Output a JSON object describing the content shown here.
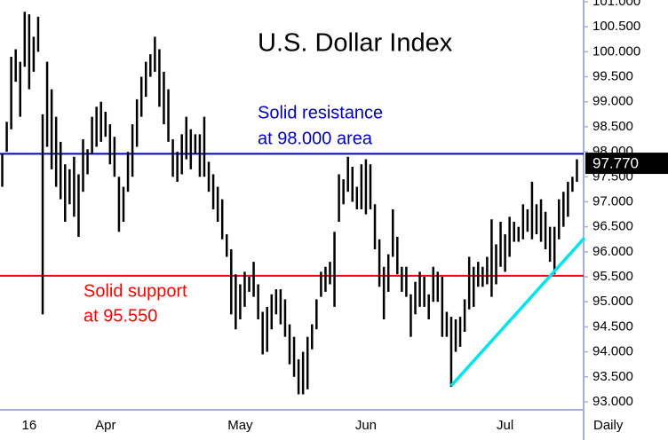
{
  "chart_data": {
    "type": "hilo",
    "title": "U.S. Dollar Index",
    "x_axis_label": "Daily",
    "color": "#000000",
    "categories": [
      null,
      null,
      null,
      null,
      null,
      null,
      "16",
      null,
      null,
      null,
      null,
      null,
      null,
      null,
      null,
      null,
      null,
      null,
      null,
      null,
      null,
      null,
      null,
      "Apr",
      null,
      null,
      null,
      null,
      null,
      null,
      null,
      null,
      null,
      null,
      null,
      null,
      null,
      null,
      null,
      null,
      null,
      null,
      null,
      null,
      null,
      null,
      null,
      null,
      null,
      null,
      null,
      null,
      null,
      "May",
      null,
      null,
      null,
      null,
      null,
      null,
      null,
      null,
      null,
      null,
      null,
      null,
      null,
      null,
      null,
      null,
      null,
      null,
      null,
      null,
      null,
      null,
      null,
      null,
      null,
      null,
      null,
      "Jun",
      null,
      null,
      null,
      null,
      null,
      null,
      null,
      null,
      null,
      null,
      null,
      null,
      null,
      null,
      null,
      null,
      null,
      null,
      null,
      null,
      null,
      null,
      null,
      null,
      null,
      null,
      null,
      null,
      null,
      null,
      "Jul",
      null,
      null,
      null,
      null,
      null,
      null,
      null,
      null,
      null,
      null,
      null,
      null,
      null,
      null,
      null,
      null
    ],
    "high": [
      97.95,
      98.6,
      99.9,
      100.05,
      99.8,
      100.8,
      100.75,
      100.3,
      100.7,
      98.75,
      99.8,
      99.25,
      98.7,
      98.2,
      97.75,
      97.65,
      97.9,
      97.55,
      98.25,
      98.05,
      98.7,
      98.9,
      99,
      98.8,
      98.55,
      98.3,
      97.5,
      97.3,
      98,
      98.55,
      99.05,
      99.5,
      99.8,
      99.95,
      100.3,
      100.05,
      99.6,
      99.25,
      98.25,
      98,
      98.35,
      98.7,
      98.45,
      98.35,
      98.35,
      98.7,
      97.8,
      97.55,
      97.3,
      97.05,
      96.35,
      96.05,
      95.55,
      95.35,
      95.6,
      95.5,
      95.8,
      95.35,
      94.8,
      94.9,
      95.15,
      95.25,
      95.25,
      95.05,
      94.55,
      94.3,
      93.85,
      94,
      94.3,
      94.55,
      95.05,
      95.6,
      95.7,
      95.8,
      96.4,
      97.55,
      97.45,
      97.9,
      97.7,
      97.3,
      97.75,
      97.85,
      97.75,
      96.95,
      96.25,
      95.7,
      95.95,
      96.85,
      96.3,
      95.7,
      95.7,
      95.15,
      95.4,
      95.6,
      95.5,
      95.15,
      95.7,
      95.6,
      95.5,
      94.8,
      94.7,
      94.65,
      94.7,
      95.05,
      95.9,
      95.7,
      95.8,
      95.7,
      95.9,
      96.65,
      96.15,
      96.6,
      96.35,
      96.7,
      96.6,
      96.5,
      96.95,
      96.85,
      97.4,
      96.95,
      97.05,
      96.8,
      96.5,
      96.5,
      97.05,
      97.2,
      97.4,
      97.5,
      97.85
    ],
    "low": [
      97.3,
      98,
      98.45,
      99.4,
      98.7,
      99.7,
      99.25,
      99.6,
      100,
      94.75,
      98.1,
      97.65,
      97.3,
      97.05,
      96.6,
      96.95,
      96.7,
      96.3,
      97.2,
      97.55,
      97.95,
      98.1,
      98.2,
      98.3,
      97.75,
      97.5,
      96.4,
      96.6,
      97.2,
      97.5,
      98.1,
      98.7,
      99.1,
      99.5,
      99.6,
      98.9,
      98.55,
      98.2,
      97.5,
      97.4,
      97.55,
      97.85,
      97.65,
      97.95,
      97.5,
      97.5,
      97.2,
      96.85,
      96.6,
      96.25,
      95.9,
      94.75,
      94.45,
      94.65,
      94.9,
      95.2,
      95.1,
      94.65,
      93.95,
      94,
      94.45,
      94.75,
      94.55,
      94.3,
      93.75,
      93.5,
      93.15,
      93.15,
      93.25,
      94.05,
      94.45,
      95.1,
      95.2,
      95.35,
      94.9,
      96.6,
      96.95,
      97.2,
      97,
      96.85,
      96.85,
      96.75,
      96.85,
      96.05,
      95.3,
      94.65,
      95.2,
      95.9,
      95.55,
      95.2,
      95.1,
      94.3,
      94.75,
      94.9,
      94.9,
      94.65,
      95,
      95,
      94.3,
      94.3,
      93.3,
      94,
      94.1,
      94.4,
      94.85,
      94.9,
      95.3,
      95.3,
      95.35,
      95.1,
      95.35,
      95.7,
      95.6,
      95.9,
      96.2,
      96.2,
      96.25,
      96.4,
      96.25,
      96.35,
      96.2,
      96.05,
      95.8,
      95.55,
      96.25,
      96.5,
      96.7,
      97.2,
      97.4
    ],
    "ylim": [
      92.84,
      101.035
    ],
    "yticks": [
      {
        "value": 93,
        "label": "93.000"
      },
      {
        "value": 93.5,
        "label": "93.500"
      },
      {
        "value": 94,
        "label": "94.000"
      },
      {
        "value": 94.5,
        "label": "94.500"
      },
      {
        "value": 95,
        "label": "95.000"
      },
      {
        "value": 95.5,
        "label": "95.500"
      },
      {
        "value": 96,
        "label": "96.000"
      },
      {
        "value": 96.5,
        "label": "96.500"
      },
      {
        "value": 97,
        "label": "97.000"
      },
      {
        "value": 97.5,
        "label": "97.500"
      },
      {
        "value": 98,
        "label": "98.000"
      },
      {
        "value": 98.5,
        "label": "98.500"
      },
      {
        "value": 99,
        "label": "99.000"
      },
      {
        "value": 99.5,
        "label": "99.500"
      },
      {
        "value": 100,
        "label": "100.000"
      },
      {
        "value": 100.5,
        "label": "100.500"
      },
      {
        "value": 101,
        "label": "101.000"
      }
    ],
    "last_price": {
      "value": 97.77,
      "label": "97.770"
    },
    "resistance": {
      "value": 97.96,
      "color": "#0000c0",
      "text": [
        "Solid resistance",
        "at 98.000 area"
      ]
    },
    "support": {
      "value": 95.52,
      "color": "#ff0000",
      "text": [
        "Solid support",
        "at 95.550"
      ]
    },
    "trendline": {
      "x": [
        100,
        129.7
      ],
      "values": [
        93.32,
        96.28
      ],
      "color": "#00e5ee"
    }
  }
}
